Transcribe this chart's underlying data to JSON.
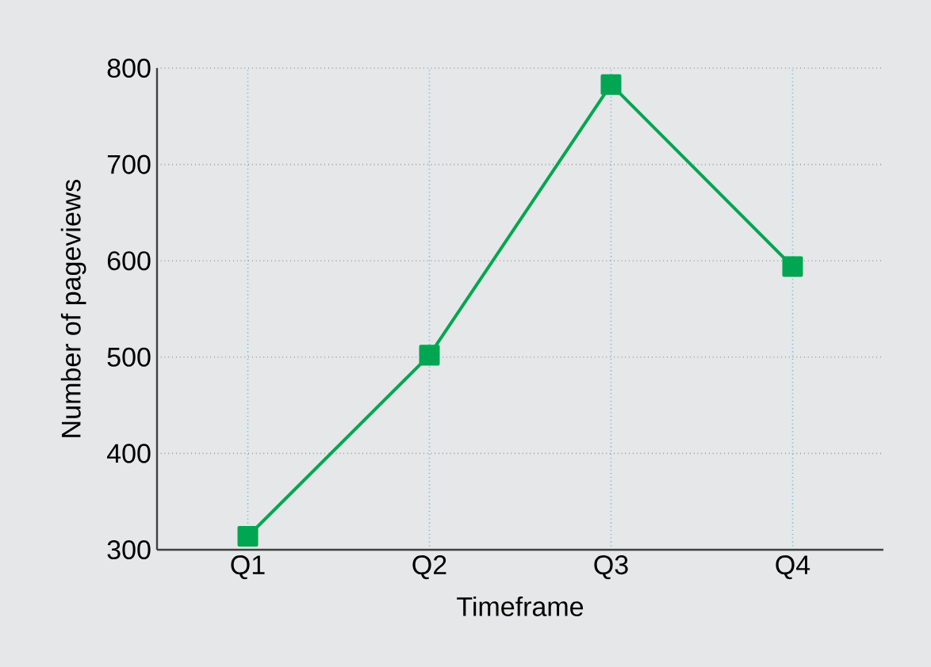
{
  "chart_data": {
    "type": "line",
    "xlabel": "Timeframe",
    "ylabel": "Number of pageviews",
    "categories": [
      "Q1",
      "Q2",
      "Q3",
      "Q4"
    ],
    "series": [
      {
        "color": "#00a651",
        "values": [
          314,
          502,
          783,
          594
        ]
      }
    ],
    "ylim": [
      300,
      800
    ],
    "yticks": [
      300,
      400,
      500,
      600,
      700,
      800
    ],
    "grid": true,
    "marker": "square",
    "line_style": "solid"
  }
}
